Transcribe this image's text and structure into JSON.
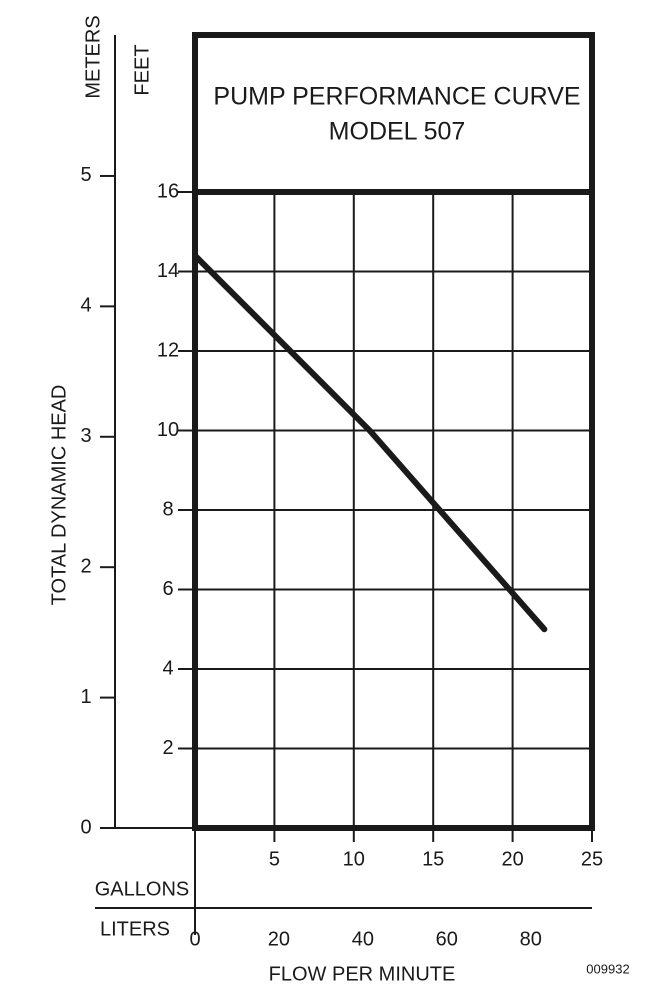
{
  "chart_data": {
    "type": "line",
    "title": "PUMP PERFORMANCE CURVE",
    "subtitle": "MODEL 507",
    "y_label": "TOTAL DYNAMIC HEAD",
    "y_unit": "FEET",
    "y2_unit": "METERS",
    "x_label": "FLOW PER MINUTE",
    "x_unit": "GALLONS",
    "x2_unit": "LITERS",
    "annotation": "009932",
    "x": [
      0,
      11,
      22
    ],
    "series": [
      {
        "name": "MODEL 507",
        "color": "#1a1a1a",
        "values": [
          14.4,
          10,
          5
        ]
      }
    ],
    "xlim": [
      0,
      25
    ],
    "xticks": [
      5,
      10,
      15,
      20,
      25
    ],
    "x2lim": [
      0,
      94.6
    ],
    "x2ticks": [
      0,
      20,
      40,
      60,
      80
    ],
    "ylim": [
      0,
      16
    ],
    "yticks": [
      2,
      4,
      6,
      8,
      10,
      12,
      14,
      16
    ],
    "y2lim": [
      0,
      4.877
    ],
    "y2ticks": [
      0,
      1,
      2,
      3,
      4,
      5
    ],
    "grid": true
  }
}
